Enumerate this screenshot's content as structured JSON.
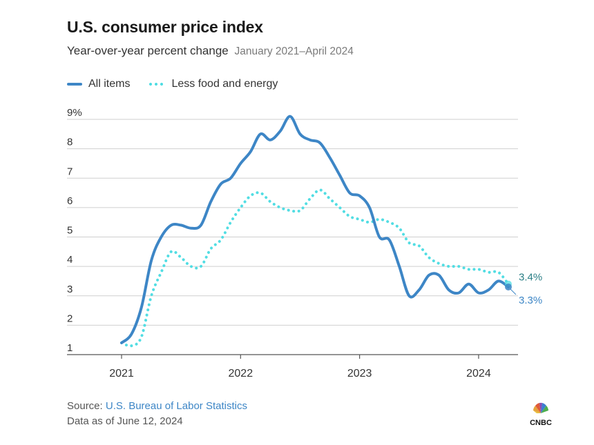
{
  "chart_data": {
    "type": "line",
    "title": "U.S. consumer price index",
    "subtitle": "Year-over-year percent change",
    "subtitle_range": "January 2021–April 2024",
    "xlabel": "",
    "ylabel": "",
    "ylim": [
      1,
      9
    ],
    "yticks": [
      "1",
      "2",
      "3",
      "4",
      "5",
      "6",
      "7",
      "8",
      "9%"
    ],
    "xticks": [
      "2021",
      "2022",
      "2023",
      "2024"
    ],
    "x": [
      "2021-01",
      "2021-02",
      "2021-03",
      "2021-04",
      "2021-05",
      "2021-06",
      "2021-07",
      "2021-08",
      "2021-09",
      "2021-10",
      "2021-11",
      "2021-12",
      "2022-01",
      "2022-02",
      "2022-03",
      "2022-04",
      "2022-05",
      "2022-06",
      "2022-07",
      "2022-08",
      "2022-09",
      "2022-10",
      "2022-11",
      "2022-12",
      "2023-01",
      "2023-02",
      "2023-03",
      "2023-04",
      "2023-05",
      "2023-06",
      "2023-07",
      "2023-08",
      "2023-09",
      "2023-10",
      "2023-11",
      "2023-12",
      "2024-01",
      "2024-02",
      "2024-03",
      "2024-04"
    ],
    "series": [
      {
        "name": "All items",
        "style": "solid",
        "color": "#3d86c6",
        "end_label": "3.3%",
        "values": [
          1.4,
          1.7,
          2.6,
          4.2,
          5.0,
          5.4,
          5.4,
          5.3,
          5.4,
          6.2,
          6.8,
          7.0,
          7.5,
          7.9,
          8.5,
          8.3,
          8.6,
          9.1,
          8.5,
          8.3,
          8.2,
          7.7,
          7.1,
          6.5,
          6.4,
          6.0,
          5.0,
          4.9,
          4.0,
          3.0,
          3.2,
          3.7,
          3.7,
          3.2,
          3.1,
          3.4,
          3.1,
          3.2,
          3.5,
          3.3
        ]
      },
      {
        "name": "Less food and energy",
        "style": "dotted",
        "color": "#52dde3",
        "end_label": "3.4%",
        "values": [
          1.4,
          1.3,
          1.6,
          3.0,
          3.8,
          4.5,
          4.3,
          4.0,
          4.0,
          4.6,
          4.9,
          5.5,
          6.0,
          6.4,
          6.5,
          6.2,
          6.0,
          5.9,
          5.9,
          6.3,
          6.6,
          6.3,
          6.0,
          5.7,
          5.6,
          5.5,
          5.6,
          5.5,
          5.3,
          4.8,
          4.7,
          4.3,
          4.1,
          4.0,
          4.0,
          3.9,
          3.9,
          3.8,
          3.8,
          3.4
        ]
      }
    ],
    "grid": true,
    "legend_position": "top-left"
  },
  "footer": {
    "source_prefix": "Source: ",
    "source_link": "U.S. Bureau of Labor Statistics",
    "as_of": "Data as of June 12, 2024",
    "logo_text": "CNBC"
  }
}
